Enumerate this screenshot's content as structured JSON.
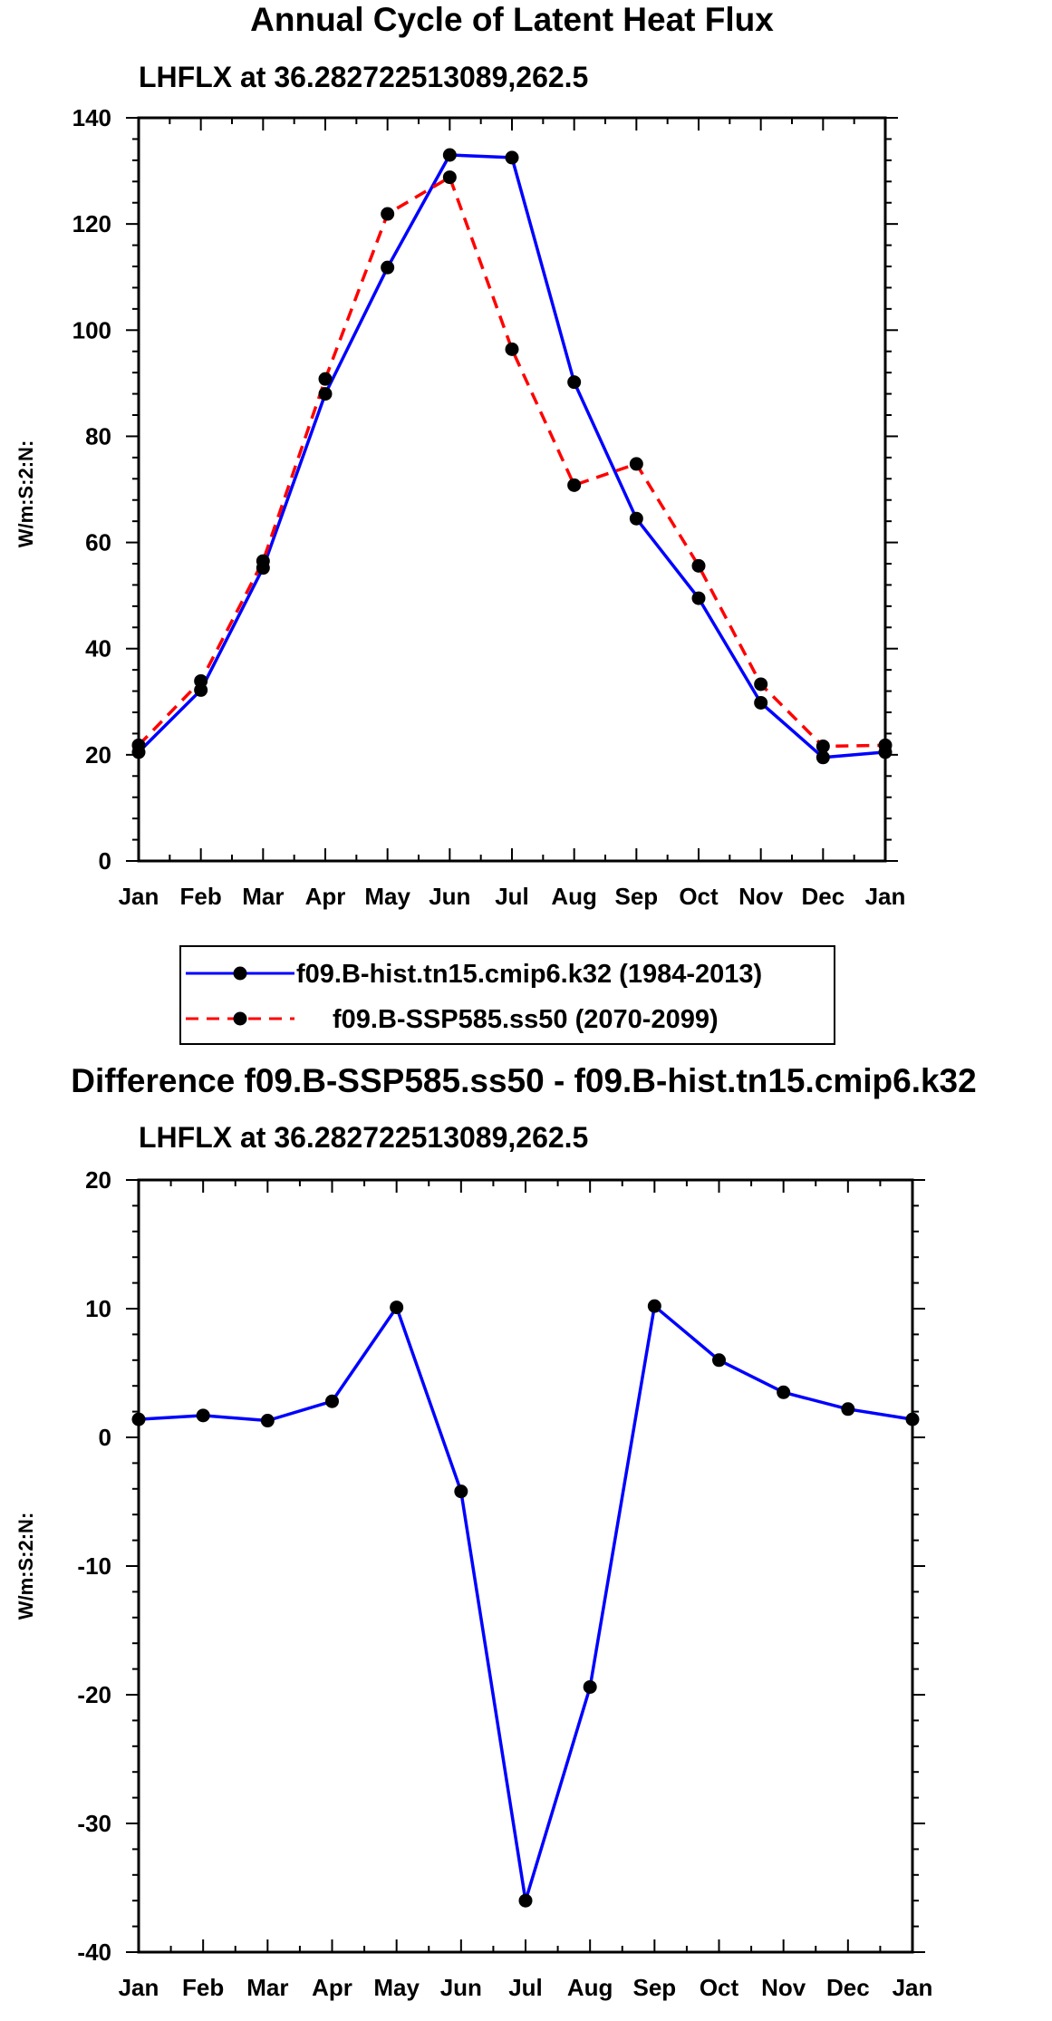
{
  "chart_data": [
    {
      "type": "line",
      "title": "Annual Cycle of Latent Heat Flux",
      "subtitle": "LHFLX at 36.282722513089,262.5",
      "xlabel": "",
      "ylabel": "W/m:S:2:N:",
      "categories": [
        "Jan",
        "Feb",
        "Mar",
        "Apr",
        "May",
        "Jun",
        "Jul",
        "Aug",
        "Sep",
        "Oct",
        "Nov",
        "Dec",
        "Jan"
      ],
      "ylim": [
        0,
        140
      ],
      "yticks": [
        0,
        20,
        40,
        60,
        80,
        100,
        120,
        140
      ],
      "ytick_labels": [
        "0",
        "20",
        "40",
        "60",
        "80",
        "100",
        "120",
        "140"
      ],
      "grid": false,
      "legend_position": "bottom",
      "series": [
        {
          "name": "f09.B-hist.tn15.cmip6.k32 (1984-2013)",
          "color": "#0000ff",
          "dash": "solid",
          "values": [
            20.5,
            32.2,
            55.2,
            88.0,
            111.8,
            133.0,
            132.5,
            90.2,
            64.5,
            49.5,
            29.8,
            19.5,
            20.5
          ]
        },
        {
          "name": "f09.B-SSP585.ss50 (2070-2099)",
          "color": "#ff0000",
          "dash": "dashed",
          "values": [
            21.8,
            33.9,
            56.5,
            90.8,
            121.9,
            128.8,
            96.4,
            70.8,
            74.8,
            55.6,
            33.3,
            21.6,
            21.8
          ]
        }
      ]
    },
    {
      "type": "line",
      "title": "Difference f09.B-SSP585.ss50 - f09.B-hist.tn15.cmip6.k32",
      "subtitle": "LHFLX at 36.282722513089,262.5",
      "xlabel": "",
      "ylabel": "W/m:S:2:N:",
      "categories": [
        "Jan",
        "Feb",
        "Mar",
        "Apr",
        "May",
        "Jun",
        "Jul",
        "Aug",
        "Sep",
        "Oct",
        "Nov",
        "Dec",
        "Jan"
      ],
      "ylim": [
        -40,
        20
      ],
      "yticks": [
        -40,
        -30,
        -20,
        -10,
        0,
        10,
        20
      ],
      "ytick_labels": [
        "-40",
        "-30",
        "-20",
        "-10",
        "0",
        "10",
        "20"
      ],
      "grid": false,
      "series": [
        {
          "name": "Difference",
          "color": "#0000ff",
          "dash": "solid",
          "values": [
            1.4,
            1.7,
            1.3,
            2.8,
            10.1,
            -4.2,
            -36.0,
            -19.4,
            10.2,
            6.0,
            3.5,
            2.2,
            1.4
          ]
        }
      ]
    }
  ]
}
